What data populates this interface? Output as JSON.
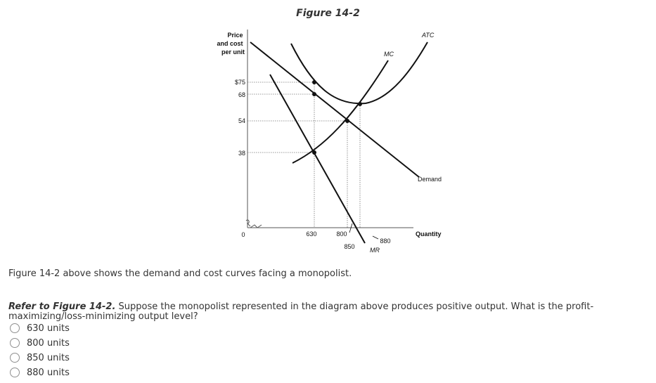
{
  "figure": {
    "title": "Figure 14-2",
    "y_axis_label": [
      "Price",
      "and cost",
      "per unit"
    ],
    "x_axis_label": "Quantity",
    "origin_label": "0",
    "y_ticks": [
      "$75",
      "68",
      "54",
      "38"
    ],
    "x_ticks": [
      "630",
      "800",
      "850",
      "880"
    ],
    "curve_labels": {
      "mc": "MC",
      "atc": "ATC",
      "demand": "Demand",
      "mr": "MR"
    }
  },
  "caption": "Figure 14-2 above shows the demand and cost curves facing a monopolist.",
  "question": {
    "reference": "Refer to Figure 14-2.",
    "text": " Suppose the monopolist represented in the diagram above produces positive output. What is the profit-maximizing/loss-minimizing output level?",
    "options": [
      "630 units",
      "800 units",
      "850 units",
      "880 units"
    ]
  }
}
